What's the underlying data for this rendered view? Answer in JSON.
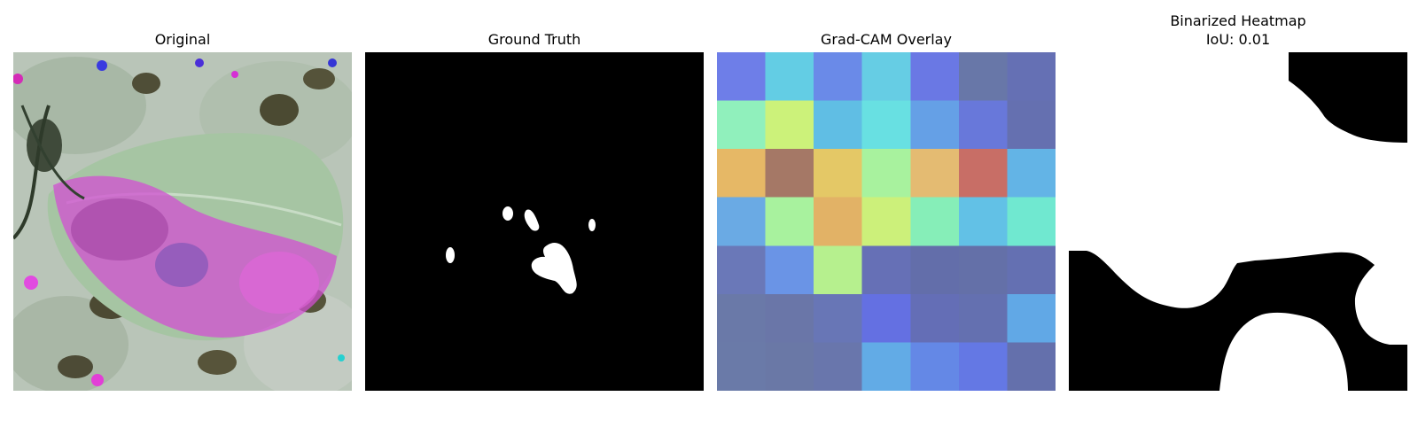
{
  "figure": {
    "panels": [
      {
        "title": "Original"
      },
      {
        "title": "Ground Truth"
      },
      {
        "title": "Grad-CAM Overlay"
      },
      {
        "title": "Binarized Heatmap",
        "subtitle": "IoU: 0.01"
      }
    ]
  },
  "colors": {
    "background": "#ffffff",
    "mask_fg": "#ffffff",
    "mask_bg": "#000000"
  }
}
